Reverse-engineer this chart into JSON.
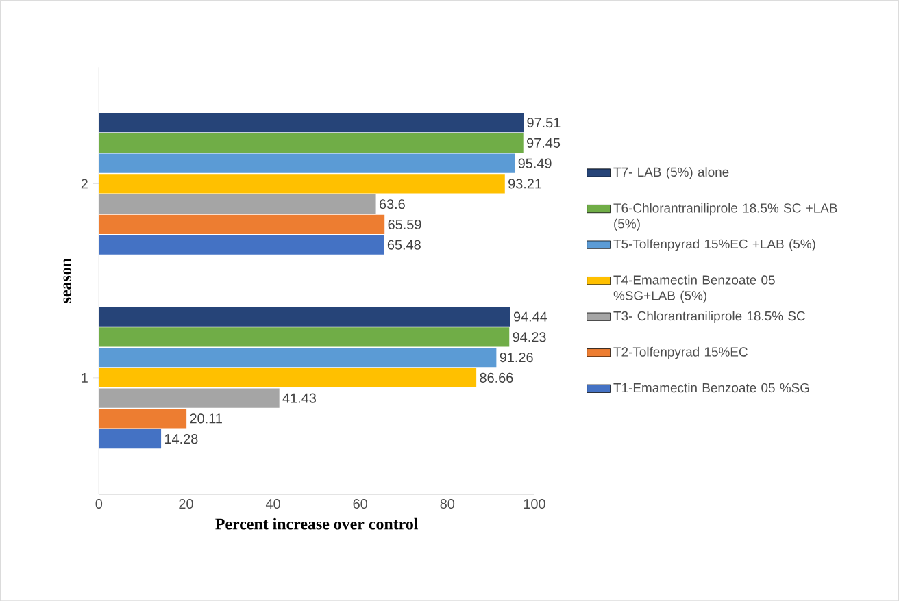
{
  "chart_data": {
    "type": "bar",
    "orientation": "horizontal",
    "xlabel": "Percent increase over control",
    "ylabel": "season",
    "categories": [
      "2",
      "1"
    ],
    "series": [
      {
        "name": "T1-Emamectin Benzoate 05 %SG",
        "color": "#4472c4",
        "values": [
          65.48,
          14.28
        ]
      },
      {
        "name": "T2-Tolfenpyrad 15%EC",
        "color": "#ed7d31",
        "values": [
          65.59,
          20.11
        ]
      },
      {
        "name": "T3- Chlorantraniliprole 18.5% SC",
        "color": "#a5a5a5",
        "values": [
          63.6,
          41.43
        ]
      },
      {
        "name": "T4-Emamectin Benzoate 05 %SG+LAB (5%)",
        "color": "#ffc000",
        "values": [
          93.21,
          86.66
        ]
      },
      {
        "name": "T5-Tolfenpyrad 15%EC +LAB (5%)",
        "color": "#5b9bd5",
        "values": [
          95.49,
          91.26
        ]
      },
      {
        "name": "T6-Chlorantraniliprole 18.5% SC +LAB (5%)",
        "color": "#70ad47",
        "values": [
          97.45,
          94.23
        ]
      },
      {
        "name": "T7- LAB (5%) alone",
        "color": "#264478",
        "values": [
          97.51,
          94.44
        ]
      }
    ],
    "xlim": [
      0,
      100
    ],
    "xticks": [
      0,
      20,
      40,
      60,
      80,
      100
    ],
    "data_labels": true,
    "legend": "right"
  }
}
